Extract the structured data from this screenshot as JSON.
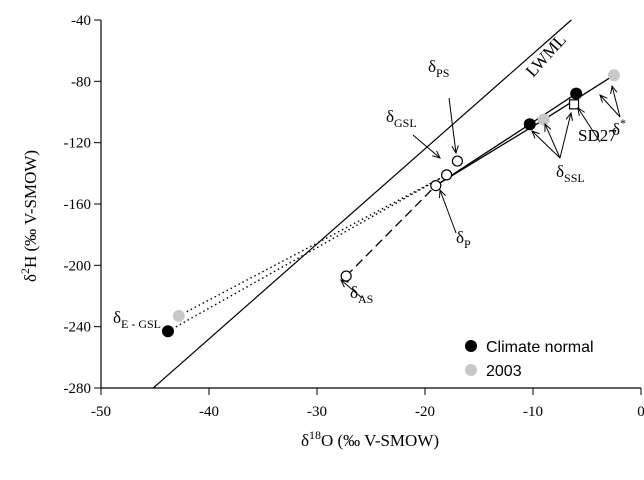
{
  "chart_data": {
    "type": "scatter",
    "title": "",
    "xlabel": {
      "main": "δ",
      "sup": "18",
      "rest": "O (‰ V-SMOW)"
    },
    "ylabel": {
      "main": "δ",
      "sup": "2",
      "rest": "H (‰ V-SMOW)"
    },
    "xlim": [
      -50,
      0
    ],
    "ylim": [
      -280,
      -40
    ],
    "x_ticks": [
      -50,
      -40,
      -30,
      -20,
      -10,
      0
    ],
    "y_ticks": [
      -280,
      -240,
      -200,
      -160,
      -120,
      -80,
      -40
    ],
    "grid": false,
    "legend_position": "bottom-right",
    "colors": {
      "climate_normal": "#000000",
      "y2003": "#c8c8c8",
      "line": "#000000"
    },
    "series": [
      {
        "name": "Climate normal",
        "marker": "filled-circle",
        "color": "#000000",
        "points": [
          {
            "x": -43.8,
            "y": -243
          },
          {
            "x": -10.3,
            "y": -108
          },
          {
            "x": -6.0,
            "y": -88
          }
        ]
      },
      {
        "name": "2003",
        "marker": "filled-circle",
        "color": "#c8c8c8",
        "points": [
          {
            "x": -42.8,
            "y": -233
          },
          {
            "x": -9.0,
            "y": -105
          },
          {
            "x": -2.5,
            "y": -76
          }
        ]
      }
    ],
    "open_points": [
      {
        "id": "p",
        "x": -19.0,
        "y": -148
      },
      {
        "id": "gsl",
        "x": -18.0,
        "y": -141
      },
      {
        "id": "ps",
        "x": -17.0,
        "y": -132
      },
      {
        "id": "as",
        "x": -27.3,
        "y": -207
      }
    ],
    "square_points": [
      {
        "id": "sd27",
        "x": -6.2,
        "y": -95
      }
    ],
    "lwml": {
      "slope": 6.2,
      "intercept": 0
    },
    "connecting_lines": [
      {
        "style": "solid",
        "from": [
          -19.0,
          -148
        ],
        "to": [
          -10.3,
          -108
        ]
      },
      {
        "style": "solid",
        "from": [
          -10.3,
          -108
        ],
        "to": [
          -6.0,
          -88
        ]
      },
      {
        "style": "solid",
        "from": [
          -19.0,
          -148
        ],
        "to": [
          -9.0,
          -105
        ]
      },
      {
        "style": "solid",
        "from": [
          -9.0,
          -105
        ],
        "to": [
          -2.5,
          -76
        ]
      },
      {
        "style": "dotted",
        "from": [
          -43.8,
          -243
        ],
        "to": [
          -18.0,
          -141
        ]
      },
      {
        "style": "dotted",
        "from": [
          -42.8,
          -233
        ],
        "to": [
          -18.0,
          -141
        ]
      },
      {
        "style": "dashed",
        "from": [
          -27.3,
          -207
        ],
        "to": [
          -19.0,
          -148
        ]
      }
    ],
    "annotations": {
      "lwml": "LWML",
      "delta": "δ",
      "ps": "PS",
      "gsl": "GSL",
      "p": "P",
      "as": "AS",
      "ssl": "SSL",
      "e_gsl": "E - GSL",
      "star": "*",
      "sd27": "SD27"
    }
  }
}
